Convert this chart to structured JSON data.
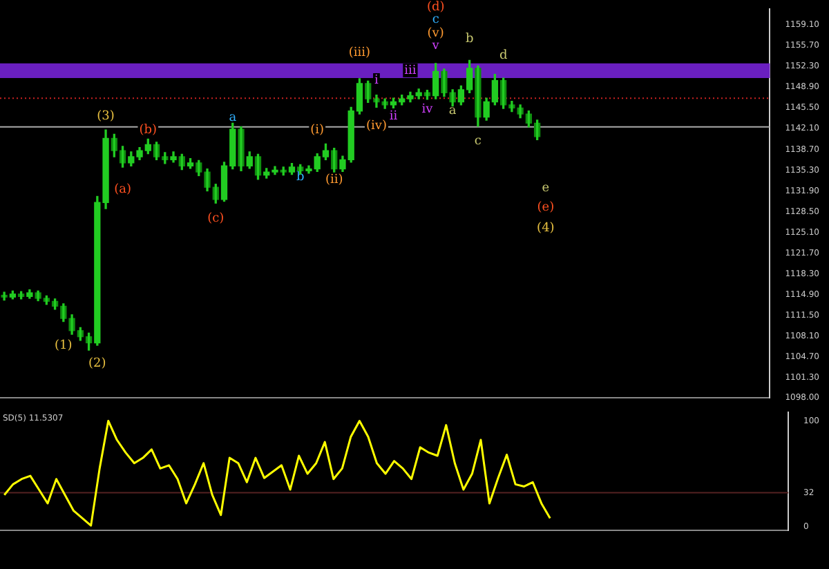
{
  "chart_data": [
    {
      "type": "candlestick",
      "color": "#22cc22",
      "colors": [
        "#0f8f0f",
        "#22cc22",
        "#0f8f0f",
        "#22cc22",
        "#0f8f0f",
        "#0f8f0f",
        "#0f8f0f",
        "#0f8f0f",
        "#0f8f0f",
        "#0f8f0f",
        "#0f8f0f",
        "#22cc22",
        "#22cc22",
        "#0f8f0f",
        "#0f8f0f",
        "#22cc22",
        "#22cc22",
        "#22cc22",
        "#0f8f0f",
        "#0f8f0f",
        "#22cc22",
        "#0f8f0f",
        "#22cc22",
        "#0f8f0f",
        "#0f8f0f",
        "#0f8f0f",
        "#22cc22",
        "#22cc22",
        "#0f8f0f",
        "#22cc22",
        "#0f8f0f",
        "#22cc22",
        "#22cc22",
        "#0f8f0f",
        "#22cc22",
        "#0f8f0f",
        "#22cc22",
        "#22cc22",
        "#22cc22",
        "#0f8f0f",
        "#22cc22",
        "#22cc22",
        "#22cc22",
        "#0f8f0f",
        "#0f8f0f",
        "#0f8f0f",
        "#22cc22",
        "#22cc22",
        "#22cc22",
        "#22cc22",
        "#0f8f0f",
        "#22cc22",
        "#0f8f0f",
        "#0f8f0f",
        "#22cc22",
        "#22cc22",
        "#0f8f0f",
        "#22cc22",
        "#22cc22",
        "#0f8f0f",
        "#0f8f0f",
        "#0f8f0f",
        "#0f8f0f",
        "#0f8f0f",
        null,
        null,
        null,
        null,
        null,
        null,
        null,
        null,
        null,
        null,
        null,
        null,
        null,
        null,
        null,
        null,
        null,
        null,
        null,
        null,
        null,
        null,
        null,
        null,
        null,
        null,
        null
      ],
      "categories": [
        null,
        null,
        null,
        null,
        null,
        null,
        null,
        null,
        null,
        null,
        null,
        null,
        null,
        null,
        null,
        null,
        null,
        null,
        null,
        null,
        null,
        null,
        null,
        null,
        null,
        null,
        null,
        null,
        null,
        null,
        null,
        null,
        null,
        null,
        null,
        null,
        null,
        null,
        null,
        null,
        null,
        null,
        null,
        null,
        null,
        null,
        null,
        null,
        null,
        null,
        null,
        null,
        null,
        null,
        null,
        null,
        null,
        null,
        null,
        null,
        null,
        null,
        null,
        null,
        null,
        null,
        null,
        null,
        null,
        null,
        null,
        null,
        null,
        null,
        null,
        null,
        null,
        null,
        null,
        null,
        null,
        null,
        null,
        null,
        null,
        null,
        null,
        null,
        null,
        null,
        null
      ],
      "ohlc": [
        [
          1114.8,
          1115.3,
          1114.0,
          1114.5
        ],
        [
          1114.5,
          1115.5,
          1114.2,
          1115.0
        ],
        [
          1115.0,
          1115.4,
          1114.2,
          1114.6
        ],
        [
          1114.6,
          1115.7,
          1114.3,
          1115.2
        ],
        [
          1115.2,
          1115.5,
          1113.9,
          1114.3
        ],
        [
          1114.3,
          1114.7,
          1113.3,
          1113.8
        ],
        [
          1113.8,
          1114.2,
          1112.5,
          1113.0
        ],
        [
          1113.0,
          1113.4,
          1110.5,
          1111.0
        ],
        [
          1111.0,
          1111.6,
          1108.4,
          1109.0
        ],
        [
          1109.0,
          1109.5,
          1107.4,
          1108.0
        ],
        [
          1108.0,
          1108.6,
          1105.8,
          1107.0
        ],
        [
          1107.0,
          1131.0,
          1106.6,
          1130.0
        ],
        [
          1130.0,
          1141.9,
          1129.0,
          1140.5
        ],
        [
          1140.5,
          1141.2,
          1137.5,
          1138.5
        ],
        [
          1138.5,
          1139.2,
          1135.8,
          1136.5
        ],
        [
          1136.5,
          1138.3,
          1136.0,
          1137.5
        ],
        [
          1137.5,
          1139.0,
          1137.0,
          1138.5
        ],
        [
          1138.5,
          1140.4,
          1138.0,
          1139.5
        ],
        [
          1139.5,
          1139.9,
          1137.0,
          1137.5
        ],
        [
          1137.5,
          1138.2,
          1136.4,
          1137.0
        ],
        [
          1137.0,
          1138.3,
          1136.6,
          1137.5
        ],
        [
          1137.5,
          1137.9,
          1135.4,
          1136.0
        ],
        [
          1136.0,
          1137.2,
          1135.6,
          1136.5
        ],
        [
          1136.5,
          1136.9,
          1134.4,
          1135.0
        ],
        [
          1135.0,
          1135.5,
          1131.9,
          1132.5
        ],
        [
          1132.5,
          1133.0,
          1129.9,
          1130.5
        ],
        [
          1130.5,
          1136.6,
          1130.2,
          1136.0
        ],
        [
          1136.0,
          1143.0,
          1135.5,
          1142.0
        ],
        [
          1142.0,
          1142.4,
          1135.2,
          1136.0
        ],
        [
          1136.0,
          1138.3,
          1135.6,
          1137.5
        ],
        [
          1137.5,
          1137.9,
          1133.8,
          1134.5
        ],
        [
          1134.5,
          1135.6,
          1134.0,
          1135.0
        ],
        [
          1135.0,
          1135.9,
          1134.6,
          1135.3
        ],
        [
          1135.3,
          1135.8,
          1134.5,
          1135.0
        ],
        [
          1135.0,
          1136.4,
          1134.6,
          1135.8
        ],
        [
          1135.8,
          1136.2,
          1134.7,
          1135.2
        ],
        [
          1135.2,
          1136.0,
          1134.8,
          1135.5
        ],
        [
          1135.5,
          1138.0,
          1135.1,
          1137.5
        ],
        [
          1137.5,
          1139.6,
          1137.0,
          1138.5
        ],
        [
          1138.5,
          1138.9,
          1135.0,
          1135.5
        ],
        [
          1135.5,
          1137.6,
          1135.1,
          1137.0
        ],
        [
          1137.0,
          1145.6,
          1136.6,
          1145.0
        ],
        [
          1145.0,
          1150.3,
          1144.5,
          1149.5
        ],
        [
          1149.5,
          1149.9,
          1146.4,
          1147.0
        ],
        [
          1147.0,
          1147.6,
          1145.6,
          1146.5
        ],
        [
          1146.5,
          1147.0,
          1145.4,
          1146.0
        ],
        [
          1146.0,
          1147.1,
          1145.5,
          1146.5
        ],
        [
          1146.5,
          1147.6,
          1146.0,
          1147.0
        ],
        [
          1147.0,
          1148.1,
          1146.5,
          1147.5
        ],
        [
          1147.5,
          1148.6,
          1147.0,
          1148.0
        ],
        [
          1148.0,
          1148.4,
          1146.9,
          1147.5
        ],
        [
          1147.5,
          1152.8,
          1147.0,
          1151.5
        ],
        [
          1151.5,
          1151.9,
          1147.4,
          1148.0
        ],
        [
          1148.0,
          1148.5,
          1145.8,
          1146.5
        ],
        [
          1146.5,
          1149.1,
          1146.0,
          1148.5
        ],
        [
          1148.5,
          1153.3,
          1148.0,
          1152.0
        ],
        [
          1152.0,
          1152.4,
          1142.5,
          1144.0
        ],
        [
          1144.0,
          1147.1,
          1143.5,
          1146.5
        ],
        [
          1146.5,
          1151.0,
          1146.0,
          1150.0
        ],
        [
          1150.0,
          1150.4,
          1145.4,
          1146.0
        ],
        [
          1146.0,
          1146.6,
          1144.9,
          1145.5
        ],
        [
          1145.5,
          1146.0,
          1143.9,
          1144.5
        ],
        [
          1144.5,
          1145.0,
          1142.4,
          1143.0
        ],
        [
          1143.0,
          1143.5,
          1140.3,
          1140.8
        ],
        null,
        null,
        null,
        null,
        null,
        null,
        null,
        null,
        null,
        null,
        null,
        null,
        null,
        null,
        null,
        null,
        null,
        null,
        null,
        null,
        null,
        null,
        null,
        null,
        null,
        null,
        null
      ],
      "ylim": [
        1098,
        1161.7
      ],
      "yticks": [
        {
          "value": 1159.1,
          "label": "1159.10"
        },
        {
          "value": 1155.7,
          "label": "1155.70"
        },
        {
          "value": 1152.3,
          "label": "1152.30"
        },
        {
          "value": 1148.9,
          "label": "1148.90"
        },
        {
          "value": 1145.5,
          "label": "1145.50"
        },
        {
          "value": 1142.1,
          "label": "1142.10"
        },
        {
          "value": 1138.7,
          "label": "1138.70"
        },
        {
          "value": 1135.3,
          "label": "1135.30"
        },
        {
          "value": 1131.9,
          "label": "1131.90"
        },
        {
          "value": 1128.5,
          "label": "1128.50"
        },
        {
          "value": 1125.1,
          "label": "1125.10"
        },
        {
          "value": 1121.7,
          "label": "1121.70"
        },
        {
          "value": 1118.3,
          "label": "1118.30"
        },
        {
          "value": 1114.9,
          "label": "1114.90"
        },
        {
          "value": 1111.5,
          "label": "1111.50"
        },
        {
          "value": 1108.1,
          "label": "1108.10"
        },
        {
          "value": 1104.7,
          "label": "1104.70"
        },
        {
          "value": 1101.3,
          "label": "1101.30"
        },
        {
          "value": 1098,
          "label": "1098.00"
        }
      ],
      "tick_labels": "y",
      "bands": [
        {
          "axis": "y",
          "from": 1150.4,
          "to": 1152.8,
          "color": "#6a1fc0"
        }
      ],
      "ref_lines": [
        {
          "axis": "y",
          "value": 1142.4,
          "color": "#aaaaaa",
          "line_style": "solid"
        },
        {
          "axis": "y",
          "value": 1147.1,
          "color": "#cc2222",
          "line_style": "dotted"
        }
      ],
      "annotations": [
        "(1)",
        "(2)",
        "(3)",
        "(a)",
        "(b)",
        "(c)",
        "a",
        "b",
        "(i)",
        "(ii)",
        "(iii)",
        "(iv)",
        "i",
        "ii",
        "iii",
        "iv",
        "v",
        "(v)",
        "c",
        "(d)",
        "b",
        "a",
        "d",
        "c",
        "e",
        "(e)",
        "(4)"
      ]
    },
    {
      "type": "line",
      "title": "SD(5) 11.5307",
      "color": "#ffff00",
      "categories": [
        null,
        null,
        null,
        null,
        null,
        null,
        null,
        null,
        null,
        null,
        null,
        null,
        null,
        null,
        null,
        null,
        null,
        null,
        null,
        null,
        null,
        null,
        null,
        null,
        null,
        null,
        null,
        null,
        null,
        null,
        null,
        null,
        null,
        null,
        null,
        null,
        null,
        null,
        null,
        null,
        null,
        null,
        null,
        null,
        null,
        null,
        null,
        null,
        null,
        null,
        null,
        null,
        null,
        null,
        null,
        null,
        null,
        null,
        null,
        null,
        null,
        null,
        null,
        null,
        null,
        null,
        null,
        null,
        null,
        null,
        null,
        null,
        null,
        null,
        null,
        null,
        null,
        null,
        null,
        null,
        null,
        null,
        null,
        null,
        null,
        null,
        null,
        null,
        null,
        null,
        null
      ],
      "values": [
        30,
        40,
        45,
        48,
        35,
        22,
        45,
        30,
        15,
        8,
        1,
        55,
        100,
        82,
        70,
        60,
        65,
        73,
        55,
        58,
        45,
        22,
        40,
        60,
        30,
        11,
        65,
        60,
        42,
        65,
        46,
        52,
        58,
        35,
        67,
        50,
        60,
        80,
        45,
        55,
        85,
        100,
        85,
        60,
        50,
        62,
        55,
        45,
        75,
        70,
        67,
        96,
        60,
        35,
        50,
        82,
        22,
        46,
        68,
        40,
        38,
        42,
        22,
        8,
        null,
        null,
        null,
        null,
        null,
        null,
        null,
        null,
        null,
        null,
        null,
        null,
        null,
        null,
        null,
        null,
        null,
        null,
        null,
        null,
        null,
        null,
        null,
        null,
        null,
        null,
        null
      ],
      "ylim": [
        -3.5,
        108
      ],
      "yticks": [
        100,
        32,
        0
      ],
      "tick_labels": "y",
      "ref_lines": [
        {
          "axis": "y",
          "value": 32,
          "color": "#552222",
          "line_style": "solid"
        }
      ]
    }
  ]
}
